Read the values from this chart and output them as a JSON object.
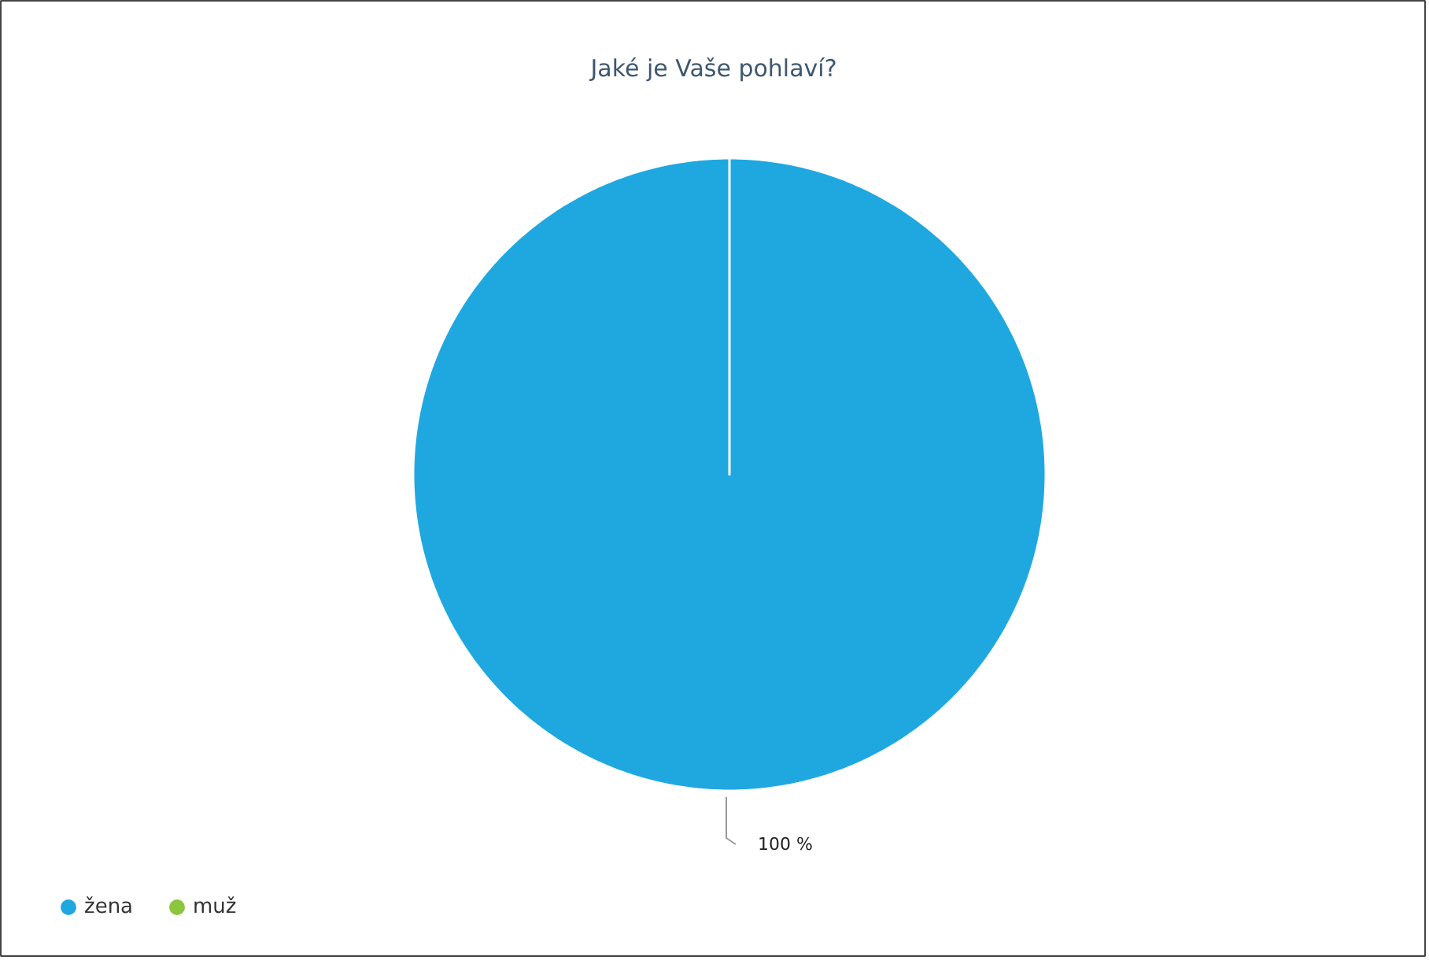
{
  "chart_data": {
    "type": "pie",
    "title": "Jaké je Vaše pohlaví?",
    "categories": [
      "žena",
      "muž"
    ],
    "values": [
      100,
      0
    ],
    "colors": [
      "#1fa8e0",
      "#8cc63f"
    ],
    "value_labels": [
      "100 %",
      null
    ],
    "legend": "bottom left"
  }
}
